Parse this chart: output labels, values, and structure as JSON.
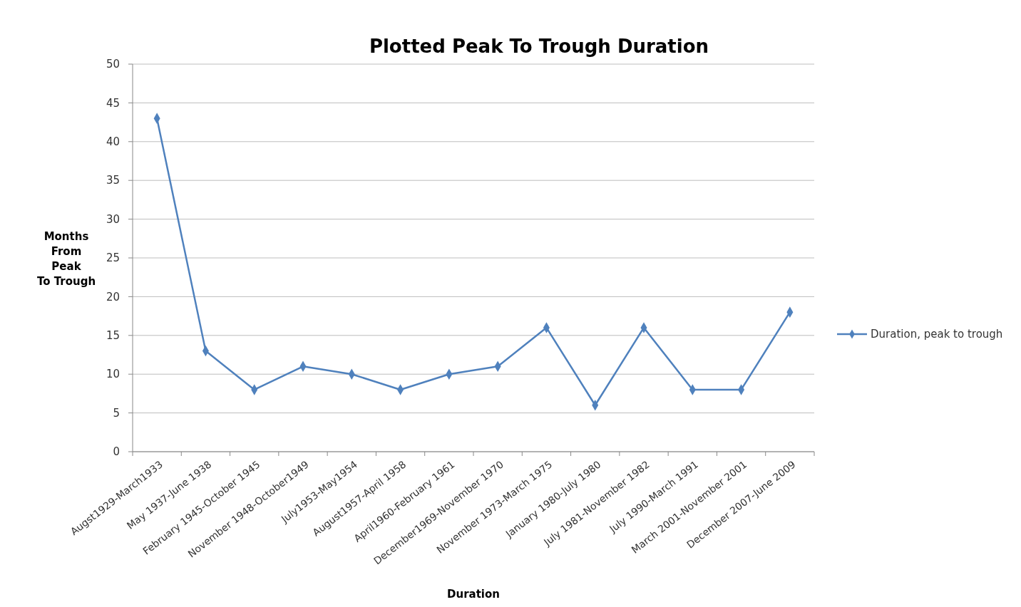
{
  "chart_data": {
    "type": "line",
    "title": "Plotted Peak To Trough Duration",
    "xlabel": "Duration",
    "ylabel": "Months From Peak To Trough",
    "categories": [
      "Augst1929-March1933",
      "May 1937-June 1938",
      "February 1945-October 1945",
      "November 1948-October1949",
      "July1953-May1954",
      "August1957-April 1958",
      "April1960-February 1961",
      "December1969-November 1970",
      "November 1973-March 1975",
      "January 1980-July 1980",
      "July 1981-November 1982",
      "July 1990-March 1991",
      "March 2001-November 2001",
      "December 2007-June 2009"
    ],
    "series": [
      {
        "name": "Duration, peak to trough",
        "color": "#4f81bd",
        "values": [
          43,
          13,
          8,
          11,
          10,
          8,
          10,
          11,
          16,
          6,
          16,
          8,
          8,
          18
        ]
      }
    ],
    "ylim": [
      0,
      50
    ],
    "yticks": [
      0,
      5,
      10,
      15,
      20,
      25,
      30,
      35,
      40,
      45,
      50
    ],
    "grid": "y",
    "legend": "right",
    "marker": "diamond",
    "line_style": "solid"
  }
}
